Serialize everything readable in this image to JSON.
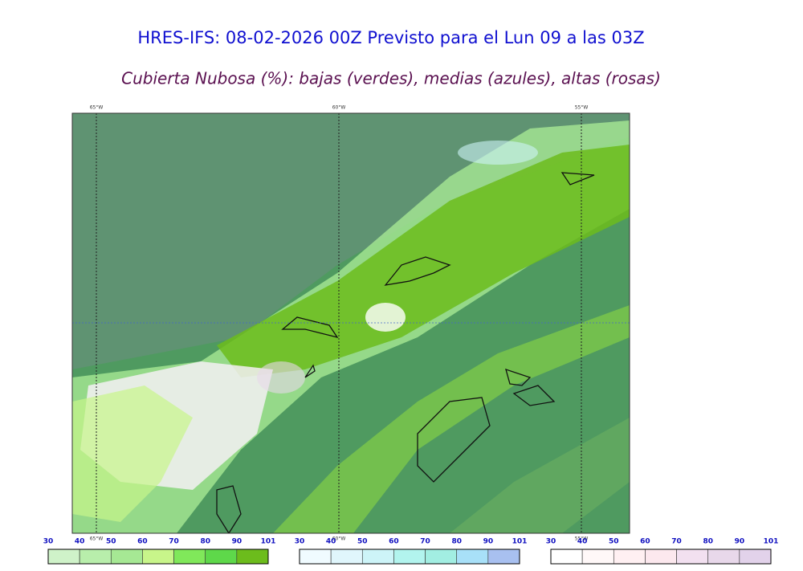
{
  "header": {
    "title": "HRES-IFS: 08-02-2026 00Z Previsto para el Lun 09 a las 03Z",
    "subtitle": "Cubierta Nubosa (%): bajas (verdes), medias (azules), altas (rosas)"
  },
  "map": {
    "lon_labels_top": [
      "65°W",
      "60°W",
      "55°W"
    ],
    "lon_labels_bottom": [
      "65°W",
      "60°W",
      "55°W"
    ]
  },
  "colorbars": [
    {
      "ticks": [
        30,
        40,
        50,
        60,
        70,
        80,
        90,
        101
      ],
      "colors": [
        "#cff2c9",
        "#b8eeab",
        "#a6e894",
        "#c8f58a",
        "#80e85a",
        "#5ed84a",
        "#6cbc1c"
      ]
    },
    {
      "ticks": [
        30,
        40,
        50,
        60,
        70,
        80,
        90,
        101
      ],
      "colors": [
        "#f0fbff",
        "#e0f6fc",
        "#cdf4f8",
        "#b2f4ee",
        "#a2eee2",
        "#a8e0f8",
        "#a8c0f0"
      ]
    },
    {
      "ticks": [
        30,
        40,
        50,
        60,
        70,
        80,
        90,
        101
      ],
      "colors": [
        "#ffffff",
        "#fff8f8",
        "#fff0f2",
        "#fce8ee",
        "#f2e0f0",
        "#e8d8ea",
        "#e2d2ea"
      ]
    }
  ]
}
